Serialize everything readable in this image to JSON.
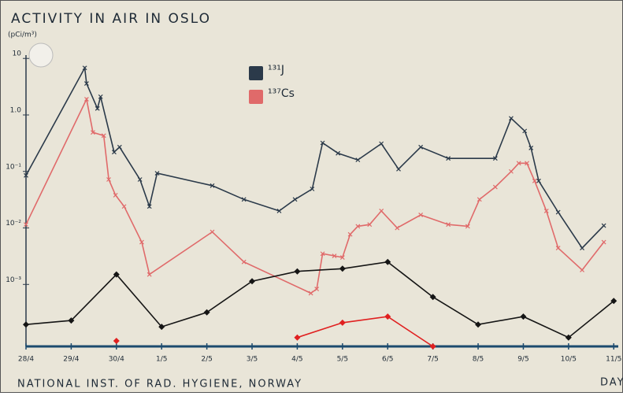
{
  "chart_data": {
    "type": "line",
    "title": "ACTIVITY IN AIR IN OSLO",
    "y_label": "(pCi/m³)",
    "x_label": "DAY",
    "footer": "NATIONAL INST. OF RAD. HYGIENE, NORWAY",
    "log_y": true,
    "grid": false,
    "legend_position": "top-center",
    "xlim": [
      0,
      13.1
    ],
    "xticks": [
      {
        "value": 0,
        "label": "28/4"
      },
      {
        "value": 1,
        "label": "29/4"
      },
      {
        "value": 2,
        "label": "30/4"
      },
      {
        "value": 3,
        "label": "1/5"
      },
      {
        "value": 4,
        "label": "2/5"
      },
      {
        "value": 5,
        "label": "3/5"
      },
      {
        "value": 6,
        "label": "4/5"
      },
      {
        "value": 7,
        "label": "5/5"
      },
      {
        "value": 8,
        "label": "6/5"
      },
      {
        "value": 9,
        "label": "7/5"
      },
      {
        "value": 10,
        "label": "8/5"
      },
      {
        "value": 11,
        "label": "9/5"
      },
      {
        "value": 12,
        "label": "10/5"
      },
      {
        "value": 13,
        "label": "11/5"
      }
    ],
    "ylim": [
      8e-05,
      30
    ],
    "yticks": [
      10,
      {
        "value": 1,
        "label": "1.0"
      },
      {
        "value": 0.1,
        "label": "10⁻¹"
      },
      {
        "value": 0.01,
        "label": "10⁻²"
      },
      {
        "value": 0.001,
        "label": "10⁻³"
      }
    ],
    "series": [
      {
        "name": "¹³¹J",
        "color": "#2b3a4a",
        "marker": "cross",
        "x": [
          0,
          1.3,
          1.34,
          1.58,
          1.65,
          1.95,
          2.07,
          2.52,
          2.73,
          2.9,
          4.12,
          4.82,
          5.6,
          5.95,
          6.33,
          6.56,
          6.9,
          7.34,
          7.86,
          8.24,
          8.73,
          9.34,
          10.38,
          10.73,
          11.03,
          11.17,
          11.34,
          11.77,
          12.3,
          12.78
        ],
        "values": [
          0.085,
          6.8,
          3.6,
          1.3,
          2.1,
          0.22,
          0.27,
          0.072,
          0.024,
          0.093,
          0.056,
          0.032,
          0.02,
          0.032,
          0.049,
          0.32,
          0.21,
          0.16,
          0.31,
          0.11,
          0.27,
          0.17,
          0.17,
          0.87,
          0.52,
          0.26,
          0.068,
          0.019,
          0.0044,
          0.011
        ]
      },
      {
        "name": "¹³⁷Cs",
        "color": "#e06a6a",
        "marker": "cross",
        "x": [
          0,
          1.34,
          1.48,
          1.72,
          1.83,
          1.98,
          2.17,
          2.56,
          2.73,
          4.12,
          4.82,
          6.3,
          6.43,
          6.56,
          6.82,
          7.0,
          7.17,
          7.34,
          7.6,
          7.86,
          8.21,
          8.73,
          9.34,
          9.77,
          10.03,
          10.38,
          10.73,
          10.9,
          11.08,
          11.25,
          11.51,
          11.77,
          12.3,
          12.78
        ],
        "values": [
          0.0115,
          1.9,
          0.49,
          0.43,
          0.072,
          0.038,
          0.024,
          0.0056,
          0.0015,
          0.0085,
          0.0025,
          0.0007,
          0.00083,
          0.0035,
          0.0032,
          0.003,
          0.0077,
          0.0107,
          0.0115,
          0.02,
          0.01,
          0.017,
          0.0115,
          0.0107,
          0.032,
          0.053,
          0.1,
          0.14,
          0.14,
          0.068,
          0.02,
          0.0044,
          0.0018,
          0.0056
        ]
      },
      {
        "color": "#151515",
        "marker": "diamond",
        "x": [
          0,
          1,
          2,
          3,
          4,
          5,
          6,
          7,
          8,
          9,
          10,
          11,
          12,
          13
        ],
        "values": [
          0.000195,
          0.00023,
          0.0015,
          0.000178,
          0.00032,
          0.00114,
          0.0017,
          0.0019,
          0.0025,
          0.0006,
          0.000195,
          0.00027,
          0.000115,
          0.00051
        ]
      },
      {
        "color": "#e02020",
        "marker": "diamond",
        "x": [
          2,
          4,
          6,
          7,
          8,
          9
        ],
        "values": [
          0.0001,
          null,
          0.000115,
          0.00021,
          0.00027,
          8e-05
        ]
      }
    ]
  }
}
